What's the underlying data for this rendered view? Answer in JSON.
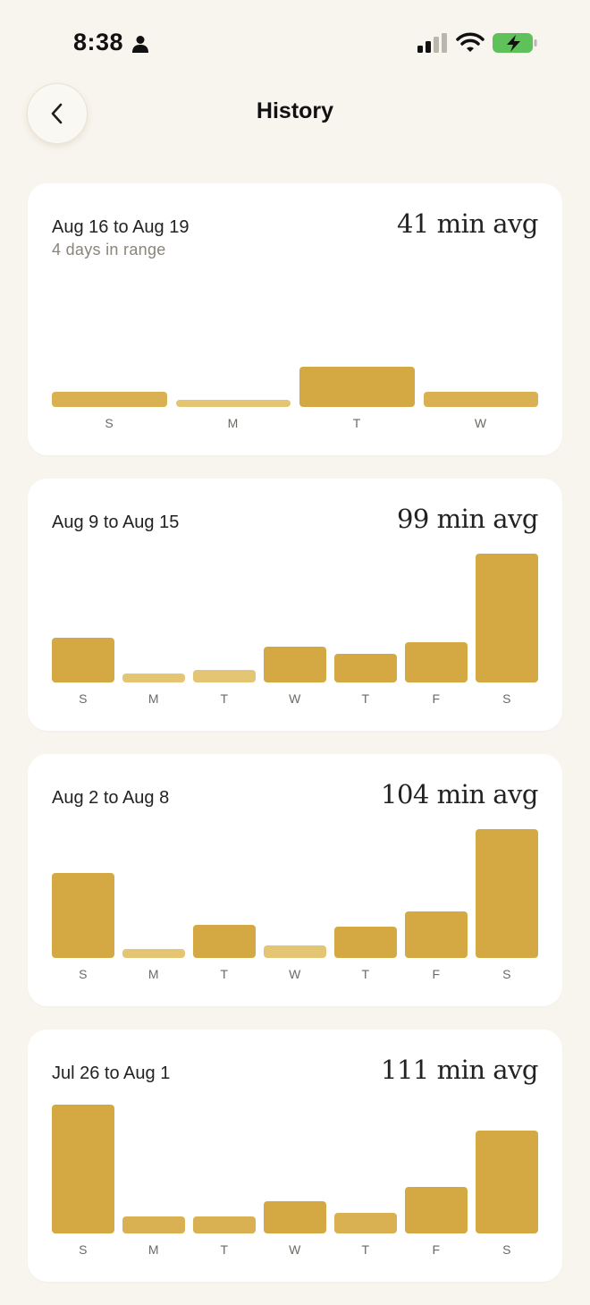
{
  "status_bar": {
    "time": "8:38"
  },
  "header": {
    "title": "History"
  },
  "colors": {
    "background": "#f8f5ee",
    "card": "#ffffff",
    "bar": "#d4a944",
    "bar_light": "#e3c574"
  },
  "icons": {
    "back": "chevron-left-icon",
    "person": "person-icon",
    "signal": "cellular-signal-icon",
    "wifi": "wifi-icon",
    "battery": "battery-charging-icon"
  },
  "cards": [
    {
      "range": "Aug 16 to Aug 19",
      "subtitle": "4 days in range",
      "avg": "41 min avg",
      "days": [
        "S",
        "M",
        "T",
        "W"
      ],
      "levels": [
        0.12,
        0.04,
        0.31,
        0.12
      ]
    },
    {
      "range": "Aug 9 to Aug 15",
      "subtitle": "",
      "avg": "99 min avg",
      "days": [
        "S",
        "M",
        "T",
        "W",
        "T",
        "F",
        "S"
      ],
      "levels": [
        0.35,
        0.07,
        0.1,
        0.28,
        0.22,
        0.31,
        1.0
      ]
    },
    {
      "range": "Aug 2 to Aug 8",
      "subtitle": "",
      "avg": "104 min avg",
      "days": [
        "S",
        "M",
        "T",
        "W",
        "T",
        "F",
        "S"
      ],
      "levels": [
        0.66,
        0.07,
        0.26,
        0.1,
        0.24,
        0.36,
        1.0
      ]
    },
    {
      "range": "Jul 26 to Aug 1",
      "subtitle": "",
      "avg": "111 min avg",
      "days": [
        "S",
        "M",
        "T",
        "W",
        "T",
        "F",
        "S"
      ],
      "levels": [
        1.0,
        0.13,
        0.13,
        0.25,
        0.16,
        0.36,
        0.8
      ]
    }
  ]
}
